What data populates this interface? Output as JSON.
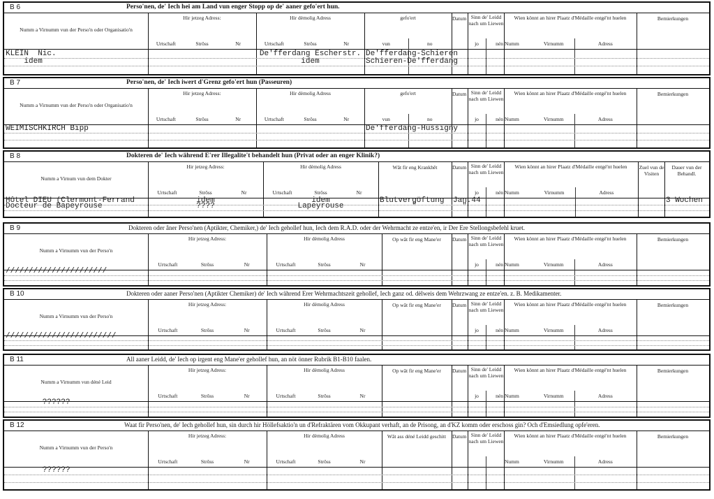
{
  "sections": [
    {
      "id": "B 6",
      "title": "Perso'nen, de' Iech hei am Land vun enger Stopp  op de' aaner gefo'ert hun.",
      "layout": "A",
      "columns": [
        {
          "key": "name",
          "label": "Numm a Virnumm vun der Perso'n oder Organisatio'n"
        },
        {
          "key": "cur",
          "label": "Hir jetzeg Adress:",
          "subs": [
            "Urtschaft",
            "Strôss",
            "Nr"
          ]
        },
        {
          "key": "former",
          "label": "Hir dèmolig Adress",
          "subs": [
            "Urtschaft",
            "Strôss",
            "Nr"
          ]
        },
        {
          "key": "moved",
          "label": "gefo'ert",
          "subs": [
            "vun",
            "no"
          ]
        },
        {
          "key": "date",
          "label": "Datum"
        },
        {
          "key": "alive",
          "label": "Sinn de' Leidd nach um Liewen",
          "subs": [
            "jo",
            "nén"
          ]
        },
        {
          "key": "recv",
          "label": "Wien könnt an hirer Plaatz d'Médaille entgé'nt huelen",
          "subs": [
            "Numm",
            "Virnumm",
            "Adress"
          ]
        },
        {
          "key": "remarks",
          "label": "Bemierkungen"
        }
      ],
      "entries": [
        {
          "col": "name",
          "line": 0,
          "text": "KLEIN  Nic."
        },
        {
          "col": "name",
          "line": 1,
          "text": "    idem"
        },
        {
          "col": "former",
          "line": 0,
          "text": "De'fferdang Escherstr."
        },
        {
          "col": "former",
          "line": 1,
          "text": "idem"
        },
        {
          "col": "moved",
          "line": 0,
          "text": "De'fferdang-Schieren"
        },
        {
          "col": "moved",
          "line": 1,
          "text": "Schieren-De'fferdang"
        }
      ]
    },
    {
      "id": "B 7",
      "title": "Perso'nen, de' Iech iwert d'Grenz gefo'ert hun (Passeuren)",
      "layout": "A",
      "columns": [
        {
          "key": "name",
          "label": "Numm a Virnumm vun der Perso'n oder Organisatio'n"
        },
        {
          "key": "cur",
          "label": "Hir jetzeg Adress:",
          "subs": [
            "Urtschaft",
            "Strôss",
            "Nr"
          ]
        },
        {
          "key": "former",
          "label": "Hir dèmolig Adress",
          "subs": [
            "Urtschaft",
            "Strôss",
            "Nr"
          ]
        },
        {
          "key": "moved",
          "label": "gefo'ert",
          "subs": [
            "vun",
            "no"
          ]
        },
        {
          "key": "date",
          "label": "Datum"
        },
        {
          "key": "alive",
          "label": "Sinn de' Leidd nach um Liewen",
          "subs": [
            "jo",
            "nén"
          ]
        },
        {
          "key": "recv",
          "label": "Wien könnt an hirer Plaatz d'Médaille entgé'nt huelen",
          "subs": [
            "Numm",
            "Virnumm",
            "Adress"
          ]
        },
        {
          "key": "remarks",
          "label": "Bemierkungen"
        }
      ],
      "entries": [
        {
          "col": "name",
          "line": 0,
          "text": "WEIMISCHKIRCH Bipp"
        },
        {
          "col": "moved",
          "line": 0,
          "text": "De'fferdang-Hussigny"
        }
      ]
    },
    {
      "id": "B 8",
      "title": "Dokteren de' Iech während E'rer Illegalite't behandelt hun (Privat oder an enger Klinik?)",
      "layout": "B",
      "columns": [
        {
          "key": "name",
          "label": "Numm a Virnum vun dem Dokter"
        },
        {
          "key": "cur",
          "label": "Hir jetzeg Adress:",
          "subs": [
            "Urtschaft",
            "Strôss",
            "Nr"
          ]
        },
        {
          "key": "former",
          "label": "Hir dèmolig Adress",
          "subs": [
            "Urtschaft",
            "Strôss",
            "Nr"
          ]
        },
        {
          "key": "illness",
          "label": "Wât fir eng Krankhêt"
        },
        {
          "key": "date",
          "label": "Datum"
        },
        {
          "key": "alive",
          "label": "Sinn de' Leidd nach um Liewen",
          "subs": [
            "jo",
            "nén"
          ]
        },
        {
          "key": "recv",
          "label": "Wien könnt an hirer Plaatz d'Médaille entgé'nt huelen",
          "subs": [
            "Numm",
            "Virnumm",
            "Adress"
          ]
        },
        {
          "key": "visits",
          "label": "Zuel vun de Visiten"
        },
        {
          "key": "duration",
          "label": "Dauer vun der Behandl."
        }
      ],
      "entries": [
        {
          "col": "name",
          "line": 0,
          "text": "Hôtel DIEU (Clermont-Ferrand"
        },
        {
          "col": "name",
          "line": 1,
          "text": "Docteur de Bapeyrouse"
        },
        {
          "col": "cur",
          "line": 0,
          "text": "idem"
        },
        {
          "col": "cur",
          "line": 1,
          "text": "????"
        },
        {
          "col": "former",
          "line": 0,
          "text": "idem"
        },
        {
          "col": "former",
          "line": 1,
          "text": "Lapeyrouse"
        },
        {
          "col": "illness",
          "line": 0,
          "text": "Blutvergöftung"
        },
        {
          "col": "illness",
          "line": 1,
          "text": "       \""
        },
        {
          "col": "date",
          "line": 0,
          "text": "Jan.44"
        },
        {
          "col": "date",
          "line": 1,
          "text": "  \""
        },
        {
          "col": "duration",
          "line": 0,
          "text": "3 Wochen"
        }
      ]
    },
    {
      "id": "B 9",
      "title": "Dokteren oder âner Perso'nen (Aptikter, Chemiker,) de' Iech gehollef hun, Iech dem R.A.D. oder der Wehrmacht ze entze'en, ir Der Ere Stellongsbefehl kruet.",
      "layout": "C",
      "columns": [
        {
          "key": "name",
          "label": "Numm a Virnumm vun der Perso'n"
        },
        {
          "key": "cur",
          "label": "Hir jetzeg Adress:",
          "subs": [
            "Urtschaft",
            "Strôss",
            "Nr"
          ]
        },
        {
          "key": "former",
          "label": "Hir dèmolig Adress",
          "subs": [
            "Urtschaft",
            "Strôss",
            "Nr"
          ]
        },
        {
          "key": "help",
          "label": "Op wât fir eng Mane'er"
        },
        {
          "key": "date",
          "label": "Datum"
        },
        {
          "key": "alive",
          "label": "Sinn de' Leidd nach um Liewen",
          "subs": [
            "jo",
            "nén"
          ]
        },
        {
          "key": "recv",
          "label": "Wien könnt an hirer Plaatz d'Médaille entgé'nt huelen",
          "subs": [
            "Numm",
            "Virnumm",
            "Adress"
          ]
        },
        {
          "key": "remarks",
          "label": "Bemierkungen"
        }
      ],
      "entries": [
        {
          "col": "name",
          "line": 0,
          "text": "//////////////////////"
        }
      ]
    },
    {
      "id": "B 10",
      "title": "Dokteren oder aaner Perso'nen (Aptikter Chemiker) de' Iech während Erer Wehrmachtszeit gehollef, Iech ganz od. dèlweis dem Wehrzwang ze entze'en. z. B. Medikamenter.",
      "layout": "C",
      "columns": [
        {
          "key": "name",
          "label": "Numm a Virnumm vun der Perso'n"
        },
        {
          "key": "cur",
          "label": "Hir jetzeg Adress:",
          "subs": [
            "Urtschaft",
            "Strôss",
            "Nr"
          ]
        },
        {
          "key": "former",
          "label": "Hir dèmolig Adress",
          "subs": [
            "Urtschaft",
            "Strôss",
            "Nr"
          ]
        },
        {
          "key": "help",
          "label": "Op wât fir eng Mane'er"
        },
        {
          "key": "date",
          "label": "Datum"
        },
        {
          "key": "alive",
          "label": "Sinn de' Leidd nach um Liewen",
          "subs": [
            "jo",
            "nén"
          ]
        },
        {
          "key": "recv",
          "label": "Wien könnt an hirer Plaatz d'Médaille entgé'nt huelen",
          "subs": [
            "Numm",
            "Virnumm",
            "Adress"
          ]
        },
        {
          "key": "remarks",
          "label": "Bemierkungen"
        }
      ],
      "entries": [
        {
          "col": "name",
          "line": 0,
          "text": "////////////////////////"
        }
      ]
    },
    {
      "id": "B 11",
      "title": "All aaner Leidd, de' Iech op irgent eng Mane'er gehollef hun, an nöt önner Rubrik B1-B10 faalen.",
      "layout": "C",
      "columns": [
        {
          "key": "name",
          "label": "Numm a Virnumm vun déné Leid"
        },
        {
          "key": "cur",
          "label": "Hir jetzeg Adress:",
          "subs": [
            "Urtschaft",
            "Strôss",
            "Nr"
          ]
        },
        {
          "key": "former",
          "label": "Hir dèmolig Adress",
          "subs": [
            "Urtschaft",
            "Strôss",
            "Nr"
          ]
        },
        {
          "key": "help",
          "label": "Op wât fir eng Mane'er"
        },
        {
          "key": "date",
          "label": "Datum"
        },
        {
          "key": "alive",
          "label": "Sinn de' Leidd nach um Liewen",
          "subs": [
            "jo",
            "nén"
          ]
        },
        {
          "key": "recv",
          "label": "Wien könnt an hirer Plaatz d'Médaille entgé'nt huelen",
          "subs": [
            "Numm",
            "Virnumm",
            "Adress"
          ]
        },
        {
          "key": "remarks",
          "label": "Bemierkungen"
        }
      ],
      "entries": [
        {
          "col": "name",
          "line": 0,
          "text": "        ??????"
        }
      ]
    },
    {
      "id": "B 12",
      "title": "Waat fir Perso'nen, de' Iech gehollef hun, sin durch hir Höllefsaktio'n un d'Refraktären vom Okkupant verhaft, an de Prisong, an d'KZ komm oder  erschoss gin? Och d'Emsiedlung opfe'eren.",
      "layout": "C",
      "columns": [
        {
          "key": "name",
          "label": "Numm a Virnumm vun der Perso'n"
        },
        {
          "key": "cur",
          "label": "Hir jetzeg Adress:",
          "subs": [
            "Urtschaft",
            "Strôss",
            "Nr"
          ]
        },
        {
          "key": "former",
          "label": "Hir dèmolig Adress",
          "subs": [
            "Urtschaft",
            "Strôss",
            "Nr"
          ]
        },
        {
          "key": "help",
          "label": "Wât ass déné Leidd geschitt"
        },
        {
          "key": "date",
          "label": "Datum"
        },
        {
          "key": "alive",
          "label": "Sinn de' Leidd nach um Liewen"
        },
        {
          "key": "recv",
          "label": "Wien könnt an hirer Plaatz d'Médaille entgé'nt huelen",
          "subs": [
            "Numm",
            "Virnumm",
            "Adress"
          ]
        },
        {
          "key": "remarks",
          "label": "Bemierkungen"
        }
      ],
      "entries": [
        {
          "col": "name",
          "line": 0,
          "text": "        ??????"
        }
      ]
    }
  ]
}
